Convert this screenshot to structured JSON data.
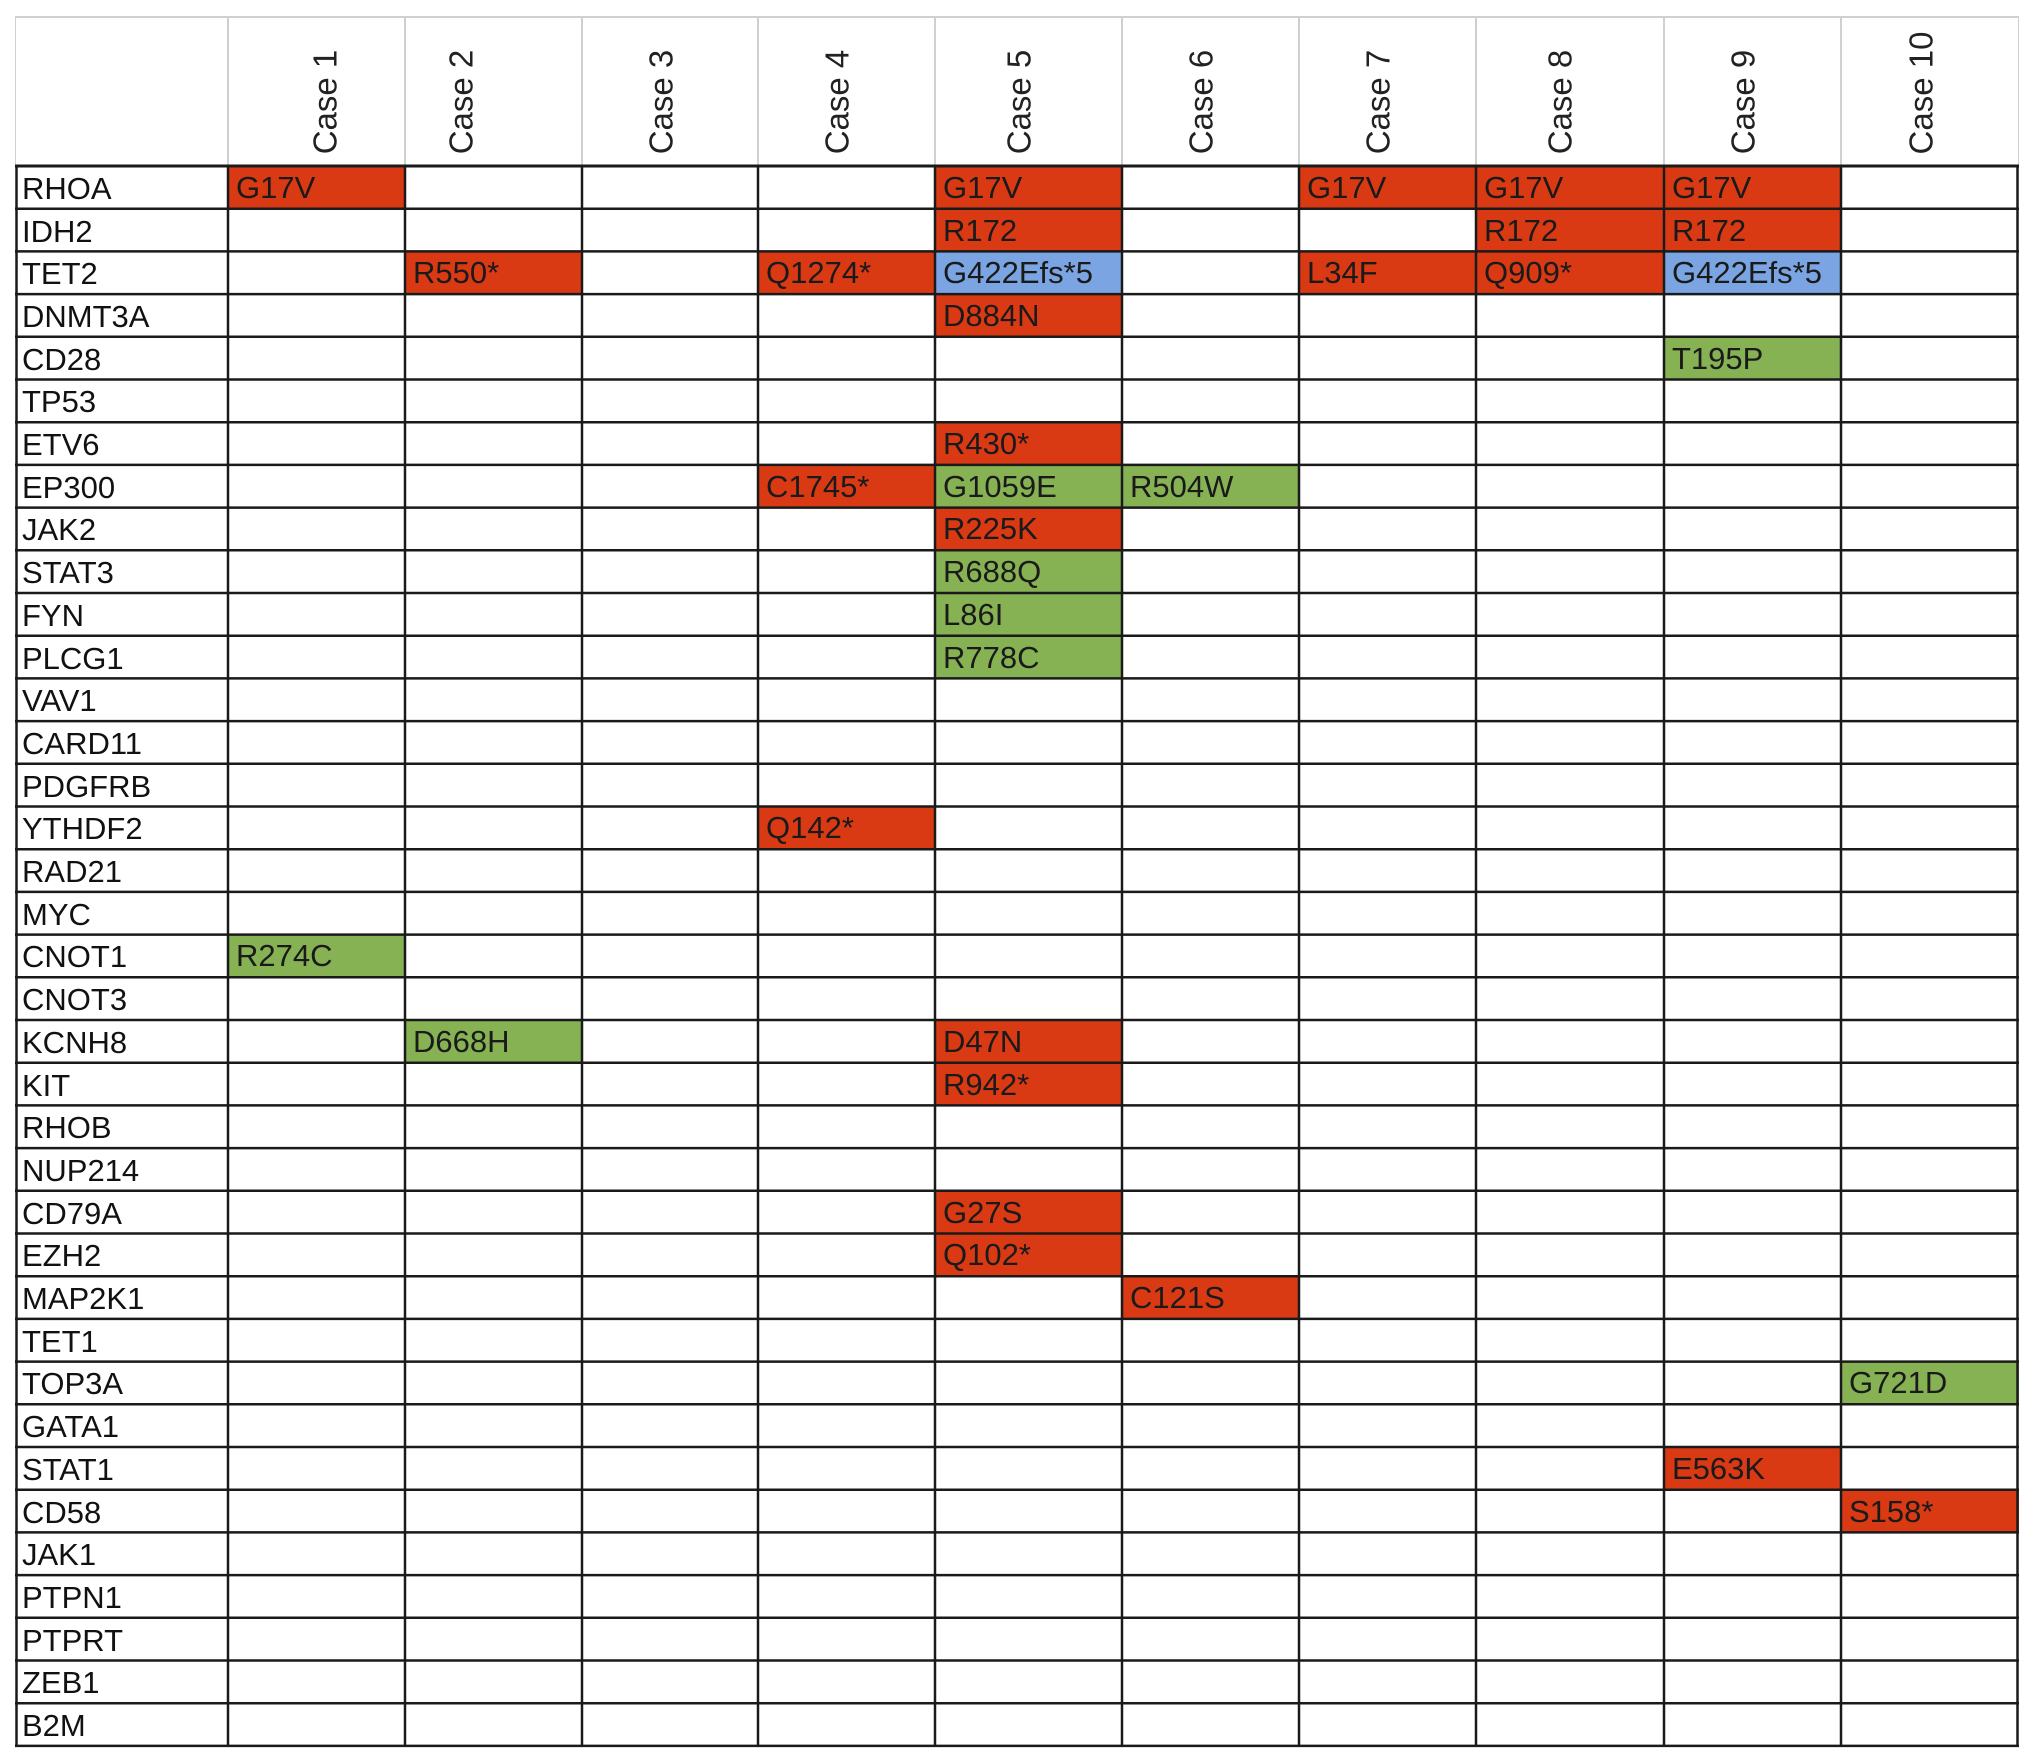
{
  "colors": {
    "red": "#d93a14",
    "green": "#86b254",
    "blue": "#7aa5e2",
    "grid_line": "#1a1a1a",
    "header_line": "#d0d0d0"
  },
  "chart_data": {
    "type": "table",
    "columns": [
      "Case 1",
      "Case 2",
      "Case 3",
      "Case 4",
      "Case 5",
      "Case 6",
      "Case 7",
      "Case 8",
      "Case 9",
      "Case 10"
    ],
    "rows": [
      "RHOA",
      "IDH2",
      "TET2",
      "DNMT3A",
      "CD28",
      "TP53",
      "ETV6",
      "EP300",
      "JAK2",
      "STAT3",
      "FYN",
      "PLCG1",
      "VAV1",
      "CARD11",
      "PDGFRB",
      "YTHDF2",
      "RAD21",
      "MYC",
      "CNOT1",
      "CNOT3",
      "KCNH8",
      "KIT",
      "RHOB",
      "NUP214",
      "CD79A",
      "EZH2",
      "MAP2K1",
      "TET1",
      "TOP3A",
      "GATA1",
      "STAT1",
      "CD58",
      "JAK1",
      "PTPN1",
      "PTPRT",
      "ZEB1",
      "B2M"
    ],
    "cells": [
      {
        "gene": "RHOA",
        "case": "Case 1",
        "mutation": "G17V",
        "color": "red"
      },
      {
        "gene": "RHOA",
        "case": "Case 5",
        "mutation": "G17V",
        "color": "red"
      },
      {
        "gene": "RHOA",
        "case": "Case 7",
        "mutation": "G17V",
        "color": "red"
      },
      {
        "gene": "RHOA",
        "case": "Case 8",
        "mutation": "G17V",
        "color": "red"
      },
      {
        "gene": "RHOA",
        "case": "Case 9",
        "mutation": "G17V",
        "color": "red"
      },
      {
        "gene": "IDH2",
        "case": "Case 5",
        "mutation": "R172",
        "color": "red"
      },
      {
        "gene": "IDH2",
        "case": "Case 8",
        "mutation": "R172",
        "color": "red"
      },
      {
        "gene": "IDH2",
        "case": "Case 9",
        "mutation": "R172",
        "color": "red"
      },
      {
        "gene": "TET2",
        "case": "Case 2",
        "mutation": "R550*",
        "color": "red"
      },
      {
        "gene": "TET2",
        "case": "Case 4",
        "mutation": "Q1274*",
        "color": "red"
      },
      {
        "gene": "TET2",
        "case": "Case 5",
        "mutation": "G422Efs*5",
        "color": "blue"
      },
      {
        "gene": "TET2",
        "case": "Case 7",
        "mutation": "L34F",
        "color": "red"
      },
      {
        "gene": "TET2",
        "case": "Case 8",
        "mutation": "Q909*",
        "color": "red"
      },
      {
        "gene": "TET2",
        "case": "Case 9",
        "mutation": "G422Efs*5",
        "color": "blue"
      },
      {
        "gene": "DNMT3A",
        "case": "Case 5",
        "mutation": "D884N",
        "color": "red"
      },
      {
        "gene": "CD28",
        "case": "Case 9",
        "mutation": "T195P",
        "color": "green"
      },
      {
        "gene": "ETV6",
        "case": "Case 5",
        "mutation": "R430*",
        "color": "red"
      },
      {
        "gene": "EP300",
        "case": "Case 4",
        "mutation": "C1745*",
        "color": "red"
      },
      {
        "gene": "EP300",
        "case": "Case 5",
        "mutation": "G1059E",
        "color": "green"
      },
      {
        "gene": "EP300",
        "case": "Case 6",
        "mutation": "R504W",
        "color": "green"
      },
      {
        "gene": "JAK2",
        "case": "Case 5",
        "mutation": "R225K",
        "color": "red"
      },
      {
        "gene": "STAT3",
        "case": "Case 5",
        "mutation": "R688Q",
        "color": "green"
      },
      {
        "gene": "FYN",
        "case": "Case 5",
        "mutation": "L86I",
        "color": "green"
      },
      {
        "gene": "PLCG1",
        "case": "Case 5",
        "mutation": "R778C",
        "color": "green"
      },
      {
        "gene": "YTHDF2",
        "case": "Case 4",
        "mutation": "Q142*",
        "color": "red"
      },
      {
        "gene": "CNOT1",
        "case": "Case 1",
        "mutation": "R274C",
        "color": "green"
      },
      {
        "gene": "KCNH8",
        "case": "Case 2",
        "mutation": "D668H",
        "color": "green"
      },
      {
        "gene": "KCNH8",
        "case": "Case 5",
        "mutation": "D47N",
        "color": "red"
      },
      {
        "gene": "KIT",
        "case": "Case 5",
        "mutation": "R942*",
        "color": "red"
      },
      {
        "gene": "CD79A",
        "case": "Case 5",
        "mutation": "G27S",
        "color": "red"
      },
      {
        "gene": "EZH2",
        "case": "Case 5",
        "mutation": "Q102*",
        "color": "red"
      },
      {
        "gene": "MAP2K1",
        "case": "Case 6",
        "mutation": "C121S",
        "color": "red"
      },
      {
        "gene": "TOP3A",
        "case": "Case 10",
        "mutation": "G721D",
        "color": "green"
      },
      {
        "gene": "STAT1",
        "case": "Case 9",
        "mutation": "E563K",
        "color": "red"
      },
      {
        "gene": "CD58",
        "case": "Case 10",
        "mutation": "S158*",
        "color": "red"
      }
    ]
  }
}
